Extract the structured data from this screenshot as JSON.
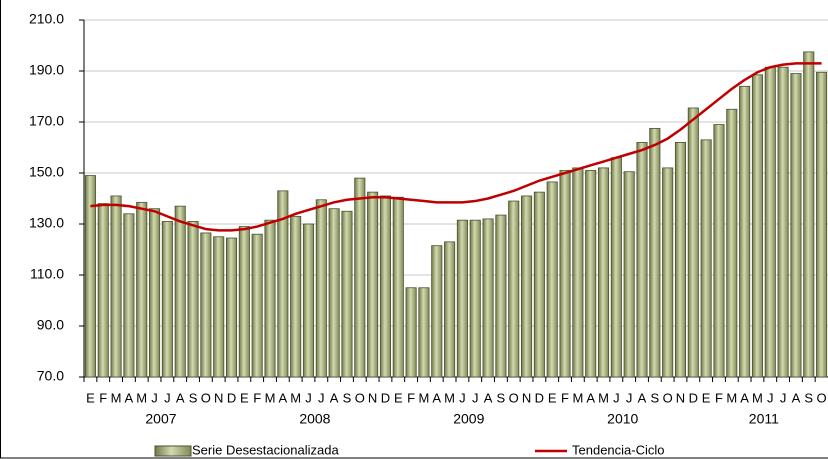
{
  "chart_data": {
    "type": "bar_line",
    "categories": [
      "E",
      "F",
      "M",
      "A",
      "M",
      "J",
      "J",
      "A",
      "S",
      "O",
      "N",
      "D",
      "E",
      "F",
      "M",
      "A",
      "M",
      "J",
      "J",
      "A",
      "S",
      "O",
      "N",
      "D",
      "E",
      "F",
      "M",
      "A",
      "M",
      "J",
      "J",
      "A",
      "S",
      "O",
      "N",
      "D",
      "E",
      "F",
      "M",
      "A",
      "M",
      "J",
      "J",
      "A",
      "S",
      "O",
      "N",
      "D",
      "E",
      "F",
      "M",
      "A",
      "M",
      "J",
      "J",
      "A",
      "S",
      "O"
    ],
    "x_groups": [
      "2007",
      "2008",
      "2009",
      "2010",
      "2011"
    ],
    "series": [
      {
        "name": "Serie Desestacionalizada",
        "type": "bar",
        "color": "#aab57f",
        "values": [
          149,
          138,
          141,
          134,
          138.5,
          136,
          131,
          137,
          131,
          126.5,
          125,
          124.5,
          129,
          126,
          131.5,
          143,
          133,
          130,
          139.5,
          136,
          135,
          148,
          142.5,
          141,
          140.5,
          105,
          105,
          121.5,
          123,
          131.5,
          131.5,
          132,
          133.5,
          139,
          141,
          142.5,
          146.5,
          151,
          152,
          151,
          152,
          156,
          150.5,
          162,
          167.5,
          152,
          162,
          175.5,
          163,
          169,
          175,
          184,
          188.5,
          191.5,
          191.5,
          189,
          197.5,
          189.5
        ]
      },
      {
        "name": "Tendencia-Ciclo",
        "type": "line",
        "color": "#c00000",
        "values": [
          137,
          137.5,
          137.5,
          137,
          136,
          135,
          133,
          131,
          129.5,
          128,
          127.5,
          127.5,
          128,
          129,
          130.5,
          132,
          134,
          135.5,
          137,
          138.5,
          139.5,
          140,
          140.5,
          140.5,
          140,
          139.5,
          139,
          138.5,
          138.5,
          138.5,
          139,
          140,
          141.5,
          143,
          145,
          147,
          148.5,
          150,
          151.5,
          153,
          154.5,
          156,
          157.5,
          159,
          161,
          163.5,
          167,
          171,
          175,
          179,
          183,
          186.5,
          189.5,
          191.5,
          192.5,
          193,
          193,
          193
        ]
      }
    ],
    "ylim": [
      70,
      210
    ],
    "yticks": [
      {
        "value": 70,
        "label": "70.0"
      },
      {
        "value": 90,
        "label": "90.0"
      },
      {
        "value": 110,
        "label": "110.0"
      },
      {
        "value": 130,
        "label": "130.0"
      },
      {
        "value": 150,
        "label": "150.0"
      },
      {
        "value": 170,
        "label": "170.0"
      },
      {
        "value": 190,
        "label": "190.0"
      },
      {
        "value": 210,
        "label": "210.0"
      }
    ],
    "grid": true,
    "legend": "bottom"
  }
}
